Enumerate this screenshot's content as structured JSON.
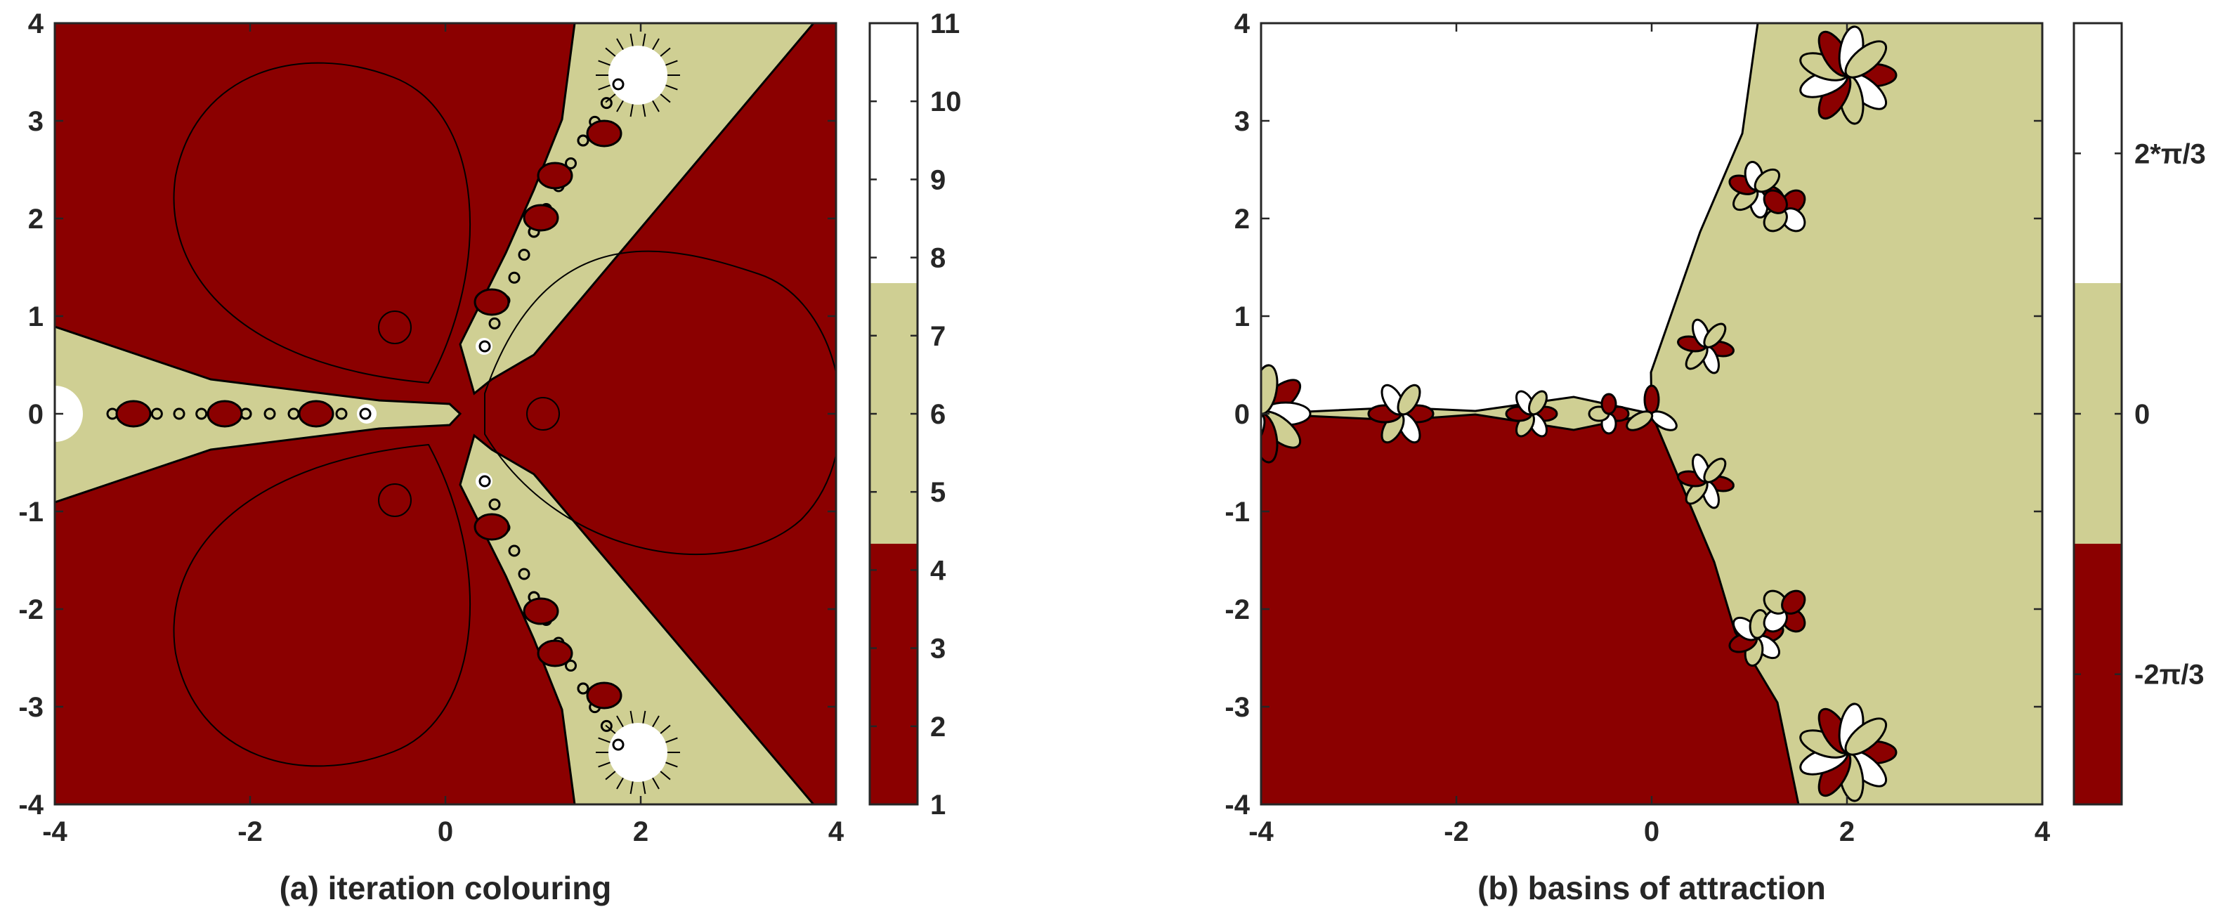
{
  "chart_data": [
    {
      "type": "heatmap",
      "subtitle": "(a) iteration colouring",
      "xlabel": "",
      "ylabel": "",
      "xlim": [
        -4,
        4
      ],
      "ylim": [
        -4,
        4
      ],
      "x_ticks": [
        -4,
        -2,
        0,
        2,
        4
      ],
      "y_ticks": [
        -4,
        -3,
        -2,
        -1,
        0,
        1,
        2,
        3,
        4
      ],
      "x_tick_labels": [
        "-4",
        "-2",
        "0",
        "2",
        "4"
      ],
      "y_tick_labels": [
        "-4",
        "-3",
        "-2",
        "-1",
        "0",
        "1",
        "2",
        "3",
        "4"
      ],
      "colorbar": {
        "range": [
          1,
          11
        ],
        "ticks": [
          1,
          2,
          3,
          4,
          5,
          6,
          7,
          8,
          9,
          10,
          11
        ],
        "tick_labels": [
          "1",
          "2",
          "3",
          "4",
          "5",
          "6",
          "7",
          "8",
          "9",
          "10",
          "11"
        ],
        "bands": [
          {
            "from": 1,
            "to": 4.33,
            "color": "#8b0000"
          },
          {
            "from": 4.33,
            "to": 7.67,
            "color": "#cfcf93"
          },
          {
            "from": 7.67,
            "to": 11,
            "color": "#ffffff"
          }
        ]
      },
      "fixed_points": [
        {
          "x": 2,
          "y": 3.46
        },
        {
          "x": 2,
          "y": -3.46
        },
        {
          "x": -4,
          "y": 0
        },
        {
          "x": -0.8,
          "y": 0
        },
        {
          "x": 0.4,
          "y": 0.69
        },
        {
          "x": 0.4,
          "y": -0.69
        }
      ]
    },
    {
      "type": "heatmap",
      "subtitle": "(b) basins of attraction",
      "xlabel": "",
      "ylabel": "",
      "xlim": [
        -4,
        4
      ],
      "ylim": [
        -4,
        4
      ],
      "x_ticks": [
        -4,
        -2,
        0,
        2,
        4
      ],
      "y_ticks": [
        -4,
        -3,
        -2,
        -1,
        0,
        1,
        2,
        3,
        4
      ],
      "x_tick_labels": [
        "-4",
        "-2",
        "0",
        "2",
        "4"
      ],
      "y_tick_labels": [
        "-4",
        "-3",
        "-2",
        "-1",
        "0",
        "1",
        "2",
        "3",
        "4"
      ],
      "colorbar": {
        "range": [
          -3.1416,
          3.1416
        ],
        "ticks": [
          -2.0944,
          0,
          2.0944
        ],
        "tick_labels": [
          "-2π/3",
          "0",
          "2*π/3"
        ],
        "bands": [
          {
            "from": -3.1416,
            "to": -1.0472,
            "color": "#8b0000"
          },
          {
            "from": -1.0472,
            "to": 1.0472,
            "color": "#cfcf93"
          },
          {
            "from": 1.0472,
            "to": 3.1416,
            "color": "#ffffff"
          }
        ]
      },
      "roots": [
        {
          "x": 2,
          "y": 3.46,
          "arg": "2*π/3"
        },
        {
          "x": -4,
          "y": 0,
          "arg": "0"
        },
        {
          "x": 2,
          "y": -3.46,
          "arg": "-2π/3"
        }
      ]
    }
  ]
}
